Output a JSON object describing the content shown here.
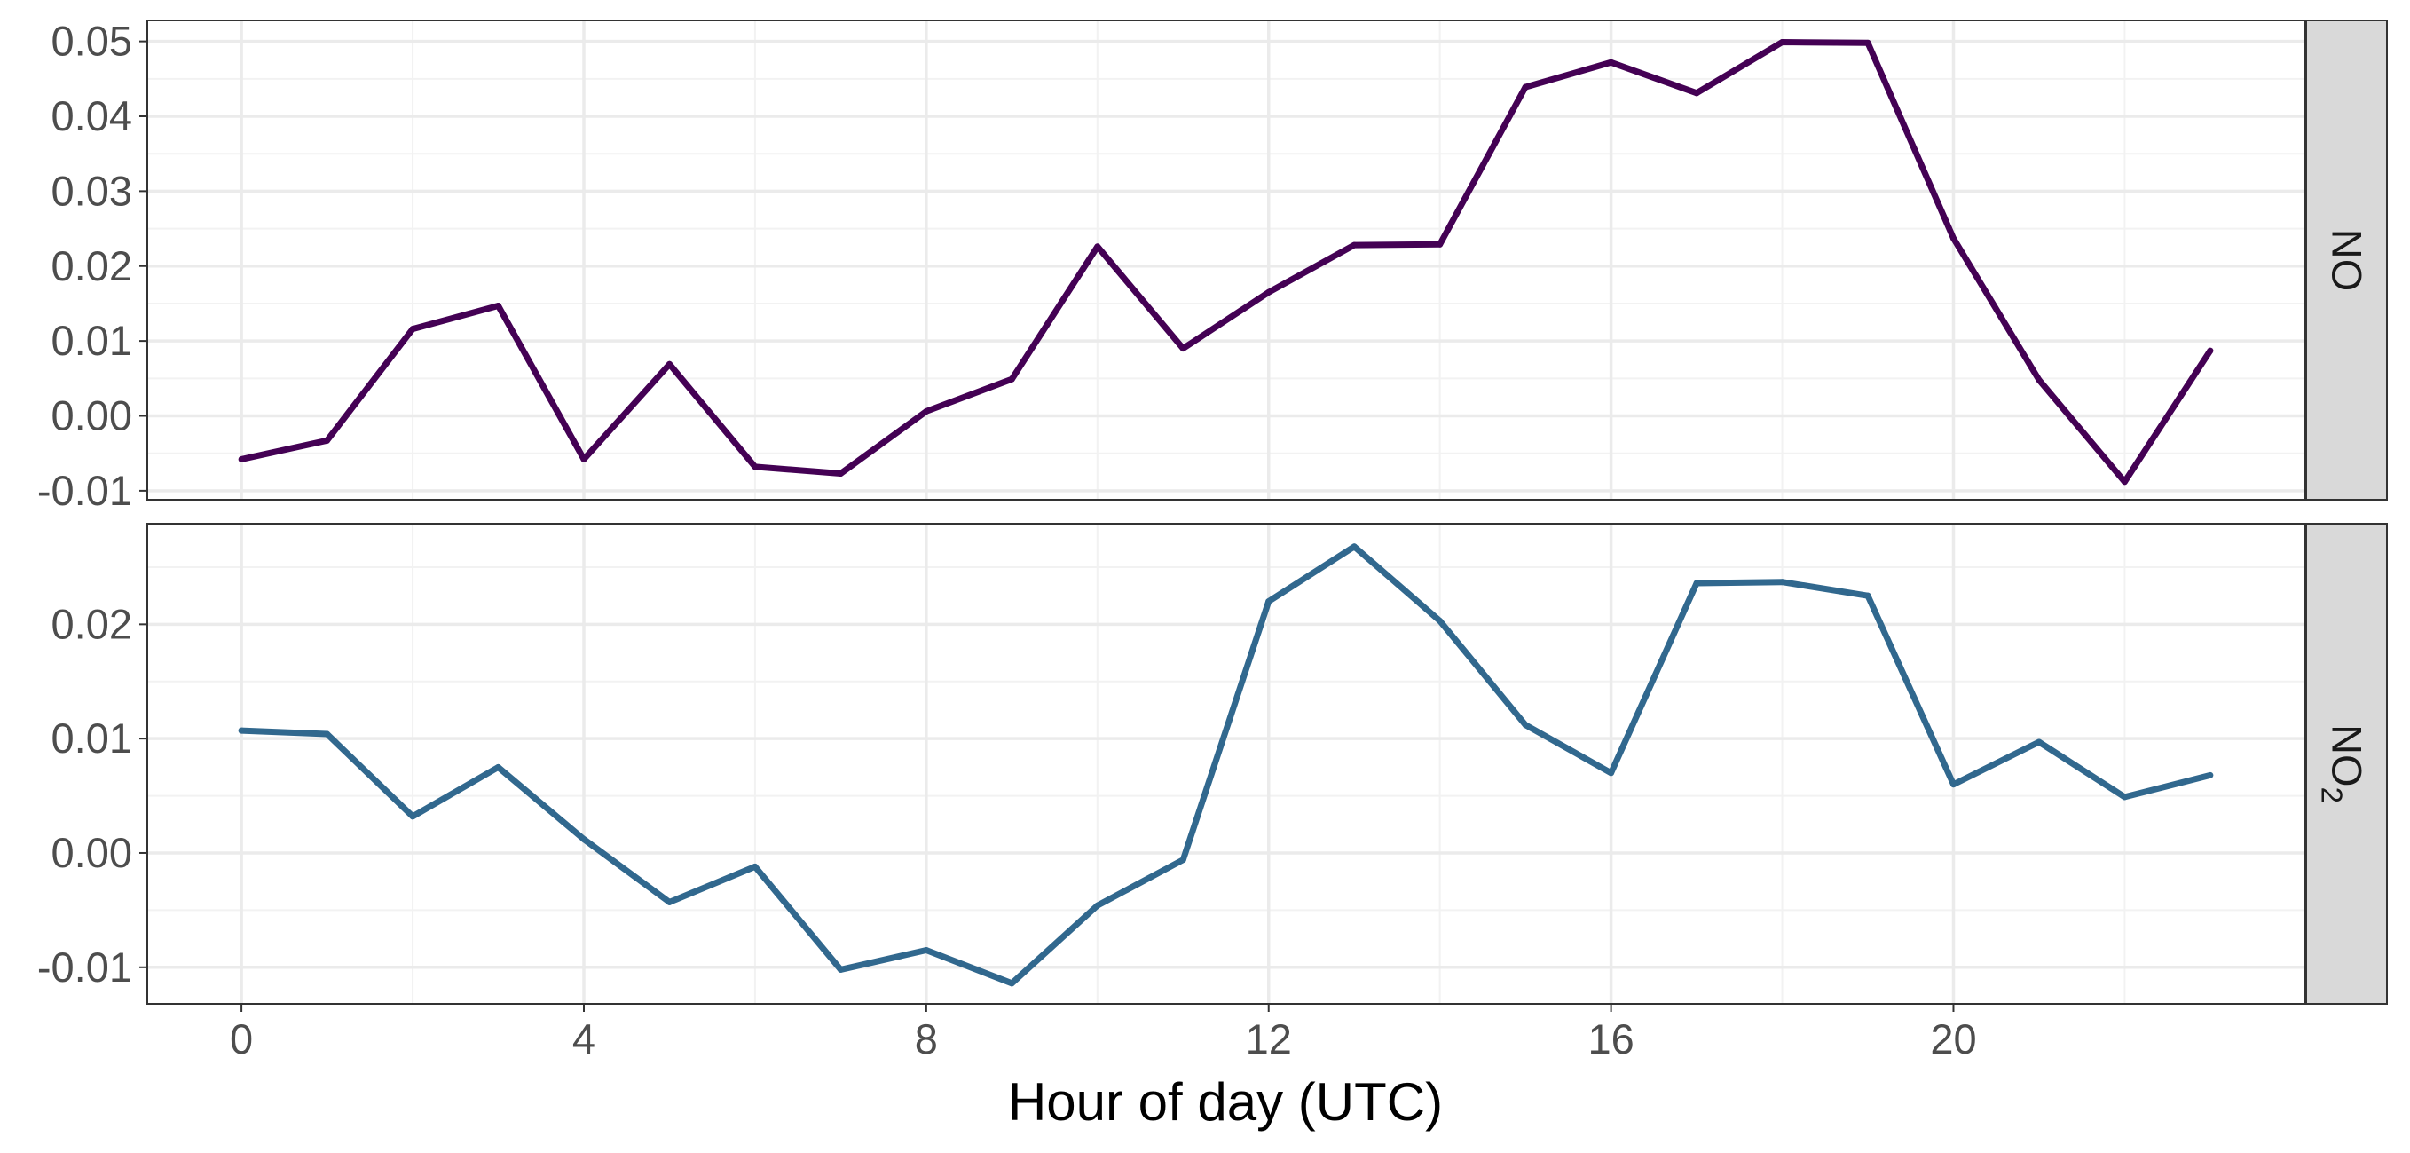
{
  "chart_data": {
    "type": "line",
    "xlabel": "Hour of day (UTC)",
    "xlim": [
      -1.1,
      24.1
    ],
    "x_ticks": [
      0,
      4,
      8,
      12,
      16,
      20
    ],
    "x_tick_labels": [
      "0",
      "4",
      "8",
      "12",
      "16",
      "20"
    ],
    "grid": true,
    "facets": [
      {
        "strip_label": "NO",
        "strip_main": "NO",
        "strip_sub": "",
        "color": "#440154",
        "ylim": [
          -0.0112,
          0.0528
        ],
        "y_ticks": [
          -0.01,
          0.0,
          0.01,
          0.02,
          0.03,
          0.04,
          0.05
        ],
        "y_tick_labels": [
          "-0.01",
          "0.00",
          "0.01",
          "0.02",
          "0.03",
          "0.04",
          "0.05"
        ],
        "x": [
          0,
          1,
          2,
          3,
          4,
          5,
          6,
          7,
          8,
          9,
          10,
          11,
          12,
          13,
          14,
          15,
          16,
          17,
          18,
          19,
          20,
          21,
          22,
          23
        ],
        "y": [
          -0.0058,
          -0.0033,
          0.0116,
          0.0147,
          -0.0058,
          0.0069,
          -0.0068,
          -0.0077,
          0.0006,
          0.0049,
          0.0226,
          0.009,
          0.0165,
          0.0228,
          0.0229,
          0.0439,
          0.0472,
          0.0431,
          0.0499,
          0.0498,
          0.0237,
          0.0048,
          -0.0088,
          0.0087
        ]
      },
      {
        "strip_label": "NO2",
        "strip_main": "NO",
        "strip_sub": "2",
        "color": "#31688e",
        "ylim": [
          -0.0132,
          0.0288
        ],
        "y_ticks": [
          -0.01,
          0.0,
          0.01,
          0.02
        ],
        "y_tick_labels": [
          "-0.01",
          "0.00",
          "0.01",
          "0.02"
        ],
        "x": [
          0,
          1,
          2,
          3,
          4,
          5,
          6,
          7,
          8,
          9,
          10,
          11,
          12,
          13,
          14,
          15,
          16,
          17,
          18,
          19,
          20,
          21,
          22,
          23
        ],
        "y": [
          0.0107,
          0.0104,
          0.0032,
          0.0075,
          0.0012,
          -0.0043,
          -0.0012,
          -0.0102,
          -0.0085,
          -0.0114,
          -0.0046,
          -0.0006,
          0.022,
          0.0268,
          0.0203,
          0.0112,
          0.007,
          0.0236,
          0.0237,
          0.0225,
          0.006,
          0.0097,
          0.0049,
          0.0068
        ]
      }
    ]
  }
}
